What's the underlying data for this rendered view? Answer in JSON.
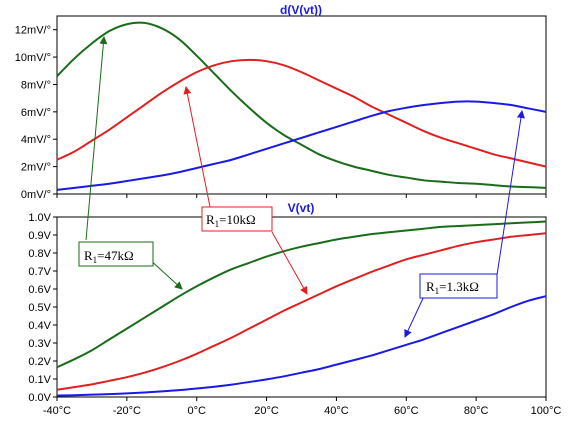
{
  "chart_data": [
    {
      "type": "line",
      "title": "d(V(vt))",
      "x_unit": "°C",
      "y_unit": "mV/°",
      "xlim": [
        -40,
        100
      ],
      "ylim": [
        0,
        13
      ],
      "x_ticks": [
        -40,
        -20,
        0,
        20,
        40,
        60,
        80,
        100
      ],
      "y_ticks": [
        "0mV/°",
        "2mV/°",
        "4mV/°",
        "6mV/°",
        "8mV/°",
        "10mV/°",
        "12mV/°"
      ],
      "y_tick_values": [
        0,
        2,
        4,
        6,
        8,
        10,
        12
      ],
      "series": [
        {
          "color": "#1a6b1a",
          "x": [
            -40,
            -35,
            -30,
            -25,
            -20,
            -15,
            -10,
            -5,
            0,
            5,
            10,
            15,
            20,
            25,
            30,
            35,
            40,
            45,
            50,
            55,
            60,
            65,
            70,
            75,
            80,
            85,
            90,
            95,
            100
          ],
          "y": [
            8.6,
            9.9,
            11.0,
            11.9,
            12.4,
            12.5,
            12.1,
            11.3,
            10.1,
            8.8,
            7.5,
            6.3,
            5.2,
            4.3,
            3.6,
            2.9,
            2.4,
            2.0,
            1.7,
            1.4,
            1.2,
            1.0,
            0.9,
            0.8,
            0.75,
            0.65,
            0.55,
            0.5,
            0.45
          ]
        },
        {
          "color": "#e02020",
          "x": [
            -40,
            -35,
            -30,
            -25,
            -20,
            -15,
            -10,
            -5,
            0,
            5,
            10,
            15,
            20,
            25,
            30,
            35,
            40,
            45,
            50,
            55,
            60,
            65,
            70,
            75,
            80,
            85,
            90,
            95,
            100
          ],
          "y": [
            2.5,
            3.1,
            3.9,
            4.7,
            5.6,
            6.5,
            7.4,
            8.2,
            8.9,
            9.4,
            9.7,
            9.8,
            9.7,
            9.4,
            8.9,
            8.3,
            7.7,
            7.1,
            6.4,
            5.8,
            5.2,
            4.6,
            4.1,
            3.7,
            3.3,
            2.9,
            2.6,
            2.3,
            2.0
          ]
        },
        {
          "color": "#1a1ae6",
          "x": [
            -40,
            -35,
            -30,
            -25,
            -20,
            -15,
            -10,
            -5,
            0,
            5,
            10,
            15,
            20,
            25,
            30,
            35,
            40,
            45,
            50,
            55,
            60,
            65,
            70,
            75,
            80,
            85,
            90,
            95,
            100
          ],
          "y": [
            0.3,
            0.45,
            0.6,
            0.75,
            0.95,
            1.15,
            1.35,
            1.6,
            1.9,
            2.2,
            2.5,
            2.9,
            3.3,
            3.7,
            4.1,
            4.5,
            4.9,
            5.3,
            5.7,
            6.05,
            6.3,
            6.5,
            6.65,
            6.75,
            6.75,
            6.65,
            6.5,
            6.25,
            6.0
          ]
        }
      ]
    },
    {
      "type": "line",
      "title": "V(vt)",
      "x_unit": "°C",
      "xlim": [
        -40,
        100
      ],
      "ylim": [
        0,
        1
      ],
      "x_ticks": [
        "-40°C",
        "-20°C",
        "0°C",
        "20°C",
        "40°C",
        "60°C",
        "80°C",
        "100°C"
      ],
      "x_tick_values": [
        -40,
        -20,
        0,
        20,
        40,
        60,
        80,
        100
      ],
      "y_ticks": [
        "0.0V",
        "0.1V",
        "0.2V",
        "0.3V",
        "0.4V",
        "0.5V",
        "0.6V",
        "0.7V",
        "0.8V",
        "0.9V",
        "1.0V"
      ],
      "y_tick_values": [
        0,
        0.1,
        0.2,
        0.3,
        0.4,
        0.5,
        0.6,
        0.7,
        0.8,
        0.9,
        1.0
      ],
      "series": [
        {
          "color": "#1a6b1a",
          "x": [
            -40,
            -35,
            -30,
            -25,
            -20,
            -15,
            -10,
            -5,
            0,
            5,
            10,
            15,
            20,
            25,
            30,
            35,
            40,
            45,
            50,
            55,
            60,
            65,
            70,
            75,
            80,
            85,
            90,
            95,
            100
          ],
          "y": [
            0.165,
            0.21,
            0.26,
            0.32,
            0.38,
            0.44,
            0.5,
            0.56,
            0.615,
            0.665,
            0.71,
            0.745,
            0.78,
            0.81,
            0.835,
            0.855,
            0.875,
            0.89,
            0.905,
            0.915,
            0.925,
            0.935,
            0.945,
            0.95,
            0.955,
            0.96,
            0.965,
            0.97,
            0.975
          ]
        },
        {
          "color": "#e02020",
          "x": [
            -40,
            -35,
            -30,
            -25,
            -20,
            -15,
            -10,
            -5,
            0,
            5,
            10,
            15,
            20,
            25,
            30,
            35,
            40,
            45,
            50,
            55,
            60,
            65,
            70,
            75,
            80,
            85,
            90,
            95,
            100
          ],
          "y": [
            0.04,
            0.055,
            0.07,
            0.09,
            0.11,
            0.135,
            0.165,
            0.2,
            0.24,
            0.285,
            0.33,
            0.38,
            0.43,
            0.48,
            0.525,
            0.57,
            0.615,
            0.655,
            0.695,
            0.73,
            0.765,
            0.79,
            0.815,
            0.84,
            0.86,
            0.875,
            0.89,
            0.9,
            0.91
          ]
        },
        {
          "color": "#1a1ae6",
          "x": [
            -40,
            -35,
            -30,
            -25,
            -20,
            -15,
            -10,
            -5,
            0,
            5,
            10,
            15,
            20,
            25,
            30,
            35,
            40,
            45,
            50,
            55,
            60,
            65,
            70,
            75,
            80,
            85,
            90,
            95,
            100
          ],
          "y": [
            0.008,
            0.01,
            0.013,
            0.016,
            0.02,
            0.025,
            0.031,
            0.038,
            0.047,
            0.057,
            0.069,
            0.083,
            0.098,
            0.115,
            0.135,
            0.155,
            0.18,
            0.205,
            0.23,
            0.26,
            0.29,
            0.32,
            0.355,
            0.39,
            0.425,
            0.46,
            0.5,
            0.535,
            0.56
          ]
        }
      ]
    }
  ],
  "annotations": [
    {
      "prefix": "R",
      "sub": "1",
      "suffix": "=47kΩ",
      "color": "#1a6b1a"
    },
    {
      "prefix": "R",
      "sub": "1",
      "suffix": "=10kΩ",
      "color": "#e02020"
    },
    {
      "prefix": "R",
      "sub": "1",
      "suffix": "=1.3kΩ",
      "color": "#1a1ae6"
    }
  ]
}
